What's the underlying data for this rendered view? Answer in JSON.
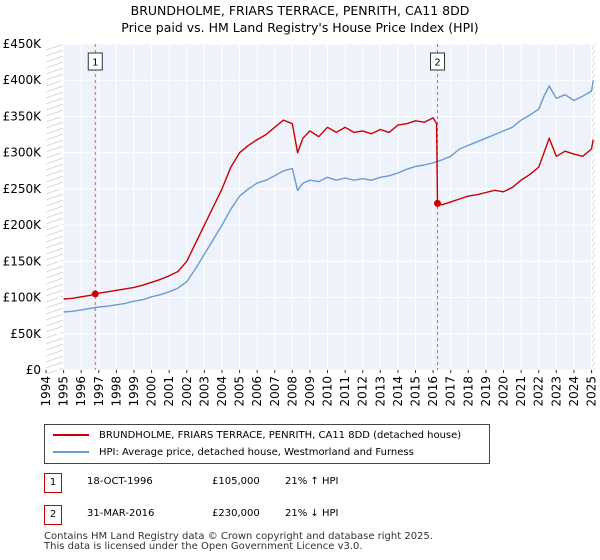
{
  "chart_data": {
    "type": "line",
    "title": "BRUNDHOLME, FRIARS TERRACE, PENRITH, CA11 8DD",
    "subtitle": "Price paid vs. HM Land Registry's House Price Index (HPI)",
    "x_ticks": [
      "1994",
      "1995",
      "1996",
      "1997",
      "1998",
      "1999",
      "2000",
      "2001",
      "2002",
      "2003",
      "2004",
      "2005",
      "2006",
      "2007",
      "2008",
      "2009",
      "2010",
      "2011",
      "2012",
      "2013",
      "2014",
      "2015",
      "2016",
      "2017",
      "2018",
      "2019",
      "2020",
      "2021",
      "2022",
      "2023",
      "2024",
      "2025"
    ],
    "y_ticks": [
      "£0",
      "£50K",
      "£100K",
      "£150K",
      "£200K",
      "£250K",
      "£300K",
      "£350K",
      "£400K",
      "£450K"
    ],
    "y_tick_values": [
      0,
      50000,
      100000,
      150000,
      200000,
      250000,
      300000,
      350000,
      400000,
      450000
    ],
    "xlim": [
      1994,
      2025.2
    ],
    "ylim": [
      0,
      450000
    ],
    "shaded_ranges": [
      [
        1994,
        1995
      ],
      [
        2025,
        2025.2
      ]
    ],
    "sale_markers": [
      {
        "label": "1",
        "x": 1996.8,
        "y": 105000
      },
      {
        "label": "2",
        "x": 2016.25,
        "y": 230000
      }
    ],
    "series": [
      {
        "name": "BRUNDHOLME, FRIARS TERRACE, PENRITH, CA11 8DD (detached house)",
        "color": "#cc0000",
        "x": [
          1995,
          1995.5,
          1996,
          1996.5,
          1996.8,
          1997,
          1997.5,
          1998,
          1998.5,
          1999,
          1999.5,
          2000,
          2000.5,
          2001,
          2001.5,
          2002,
          2002.5,
          2003,
          2003.5,
          2004,
          2004.5,
          2005,
          2005.5,
          2006,
          2006.5,
          2007,
          2007.5,
          2008,
          2008.3,
          2008.6,
          2009,
          2009.5,
          2010,
          2010.5,
          2011,
          2011.5,
          2012,
          2012.5,
          2013,
          2013.5,
          2014,
          2014.5,
          2015,
          2015.5,
          2016,
          2016.2,
          2016.25,
          2016.5,
          2017,
          2017.5,
          2018,
          2018.5,
          2019,
          2019.5,
          2020,
          2020.5,
          2021,
          2021.5,
          2022,
          2022.3,
          2022.6,
          2023,
          2023.5,
          2024,
          2024.5,
          2025,
          2025.1
        ],
        "values": [
          98000,
          99000,
          101000,
          103000,
          105000,
          106000,
          108000,
          110000,
          112000,
          114000,
          117000,
          121000,
          125000,
          130000,
          136000,
          150000,
          175000,
          200000,
          225000,
          250000,
          280000,
          300000,
          310000,
          318000,
          325000,
          335000,
          345000,
          340000,
          300000,
          320000,
          330000,
          322000,
          335000,
          328000,
          335000,
          328000,
          330000,
          326000,
          332000,
          328000,
          338000,
          340000,
          344000,
          342000,
          348000,
          340000,
          230000,
          228000,
          232000,
          236000,
          240000,
          242000,
          245000,
          248000,
          246000,
          252000,
          262000,
          270000,
          280000,
          300000,
          320000,
          295000,
          302000,
          298000,
          295000,
          305000,
          318000
        ]
      },
      {
        "name": "HPI: Average price, detached house, Westmorland and Furness",
        "color": "#6b9bd2",
        "x": [
          1995,
          1995.5,
          1996,
          1996.5,
          1997,
          1997.5,
          1998,
          1998.5,
          1999,
          1999.5,
          2000,
          2000.5,
          2001,
          2001.5,
          2002,
          2002.5,
          2003,
          2003.5,
          2004,
          2004.5,
          2005,
          2005.5,
          2006,
          2006.5,
          2007,
          2007.5,
          2008,
          2008.3,
          2008.6,
          2009,
          2009.5,
          2010,
          2010.5,
          2011,
          2011.5,
          2012,
          2012.5,
          2013,
          2013.5,
          2014,
          2014.5,
          2015,
          2015.5,
          2016,
          2016.5,
          2017,
          2017.5,
          2018,
          2018.5,
          2019,
          2019.5,
          2020,
          2020.5,
          2021,
          2021.5,
          2022,
          2022.3,
          2022.6,
          2023,
          2023.5,
          2024,
          2024.5,
          2025,
          2025.1
        ],
        "values": [
          80000,
          81000,
          83000,
          85000,
          87000,
          88000,
          90000,
          92000,
          95000,
          97000,
          101000,
          104000,
          108000,
          113000,
          122000,
          140000,
          160000,
          180000,
          200000,
          222000,
          240000,
          250000,
          258000,
          262000,
          268000,
          275000,
          278000,
          248000,
          258000,
          262000,
          260000,
          266000,
          262000,
          265000,
          262000,
          264000,
          262000,
          266000,
          268000,
          272000,
          277000,
          281000,
          283000,
          286000,
          290000,
          295000,
          305000,
          310000,
          315000,
          320000,
          325000,
          330000,
          335000,
          345000,
          352000,
          360000,
          378000,
          392000,
          375000,
          380000,
          372000,
          378000,
          385000,
          400000
        ]
      }
    ]
  },
  "legend": {
    "property_label": "BRUNDHOLME, FRIARS TERRACE, PENRITH, CA11 8DD (detached house)",
    "hpi_label": "HPI: Average price, detached house, Westmorland and Furness",
    "property_color": "#cc0000",
    "hpi_color": "#6b9bd2"
  },
  "sales": [
    {
      "num": "1",
      "date": "18-OCT-1996",
      "price": "£105,000",
      "hpi": "21% ↑ HPI"
    },
    {
      "num": "2",
      "date": "31-MAR-2016",
      "price": "£230,000",
      "hpi": "21% ↓ HPI"
    }
  ],
  "footer": {
    "line1": "Contains HM Land Registry data © Crown copyright and database right 2025.",
    "line2": "This data is licensed under the Open Government Licence v3.0."
  }
}
